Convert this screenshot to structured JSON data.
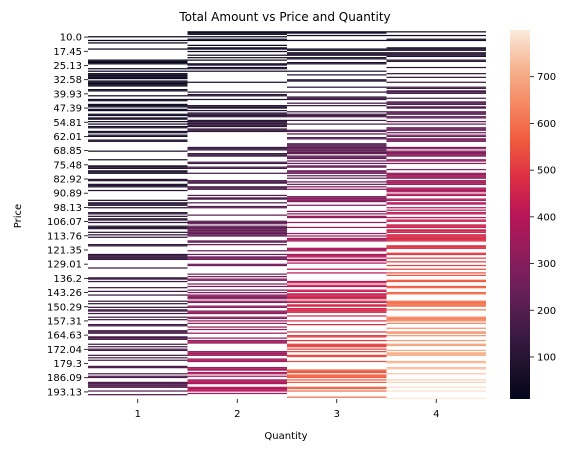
{
  "chart_data": {
    "type": "heatmap",
    "title": "Total Amount vs Price and Quantity",
    "xlabel": "Quantity",
    "ylabel": "Price",
    "x_categories": [
      "1",
      "2",
      "3",
      "4"
    ],
    "y_tick_labels": [
      "10.0",
      "17.45",
      "25.13",
      "32.58",
      "39.93",
      "47.39",
      "54.81",
      "62.01",
      "68.85",
      "75.48",
      "82.92",
      "90.89",
      "98.13",
      "106.07",
      "113.76",
      "121.35",
      "129.01",
      "136.2",
      "143.26",
      "150.29",
      "157.31",
      "164.63",
      "172.04",
      "179.3",
      "186.09",
      "193.13"
    ],
    "price_range": [
      10.0,
      200.0
    ],
    "colorbar": {
      "min": 10,
      "max": 800,
      "ticks": [
        100,
        200,
        300,
        400,
        500,
        600,
        700
      ]
    },
    "colormap": "rocket",
    "missing_values": "blank (white)",
    "cell_rule": "total amount = price x quantity; each row is one observed price, shown only in the quantity column(s) where that combination occurs"
  }
}
